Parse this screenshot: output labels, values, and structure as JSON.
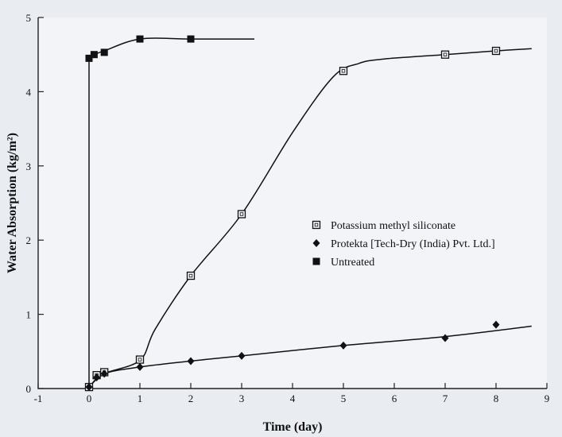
{
  "chart_data": {
    "type": "scatter",
    "xlabel": "Time (day)",
    "ylabel": "Water Absorption (kg/m²)",
    "xlim": [
      -1,
      9
    ],
    "ylim": [
      0,
      5
    ],
    "xticks": [
      -1,
      0,
      1,
      2,
      3,
      4,
      5,
      6,
      7,
      8,
      9
    ],
    "yticks": [
      0,
      1,
      2,
      3,
      4,
      5
    ],
    "grid": false,
    "legend_position": "center-right",
    "series": [
      {
        "name": "Potassium methyl siliconate",
        "marker": "open-square",
        "color": "#111111",
        "x": [
          0,
          0.15,
          0.3,
          1,
          2,
          3,
          5,
          7,
          8
        ],
        "y": [
          0.02,
          0.18,
          0.22,
          0.39,
          1.52,
          2.35,
          4.28,
          4.5,
          4.55
        ],
        "curve": {
          "x": [
            0,
            0.3,
            1,
            1.3,
            2,
            3,
            4,
            4.8,
            5.3,
            5.8,
            7,
            8,
            8.7
          ],
          "y": [
            0.02,
            0.2,
            0.38,
            0.8,
            1.52,
            2.35,
            3.45,
            4.2,
            4.38,
            4.44,
            4.5,
            4.55,
            4.58
          ]
        }
      },
      {
        "name": "Protekta [Tech-Dry (India) Pvt. Ltd.]",
        "marker": "filled-diamond",
        "color": "#111111",
        "x": [
          0,
          0.15,
          0.3,
          1,
          2,
          3,
          5,
          7,
          8
        ],
        "y": [
          0.02,
          0.15,
          0.2,
          0.29,
          0.37,
          0.44,
          0.58,
          0.68,
          0.86
        ],
        "curve": {
          "x": [
            0,
            0.3,
            1,
            2,
            3,
            5,
            7,
            8.7
          ],
          "y": [
            0.02,
            0.2,
            0.29,
            0.37,
            0.44,
            0.58,
            0.7,
            0.84
          ]
        }
      },
      {
        "name": "Untreated",
        "marker": "filled-square",
        "color": "#111111",
        "x": [
          0,
          0.1,
          0.3,
          1,
          2
        ],
        "y": [
          4.45,
          4.5,
          4.53,
          4.71,
          4.71
        ],
        "curve": {
          "x": [
            0,
            0.1,
            0.3,
            1,
            2,
            3.25
          ],
          "y": [
            4.45,
            4.5,
            4.55,
            4.71,
            4.71,
            4.71
          ]
        }
      }
    ]
  }
}
